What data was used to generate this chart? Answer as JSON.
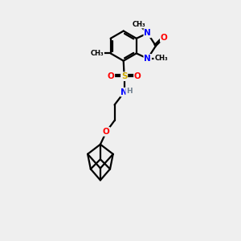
{
  "background_color": "#efefef",
  "bond_color": "#000000",
  "atom_colors": {
    "N": "#0000ff",
    "O": "#ff0000",
    "S": "#ccaa00",
    "H": "#708090",
    "C": "#000000"
  },
  "figsize": [
    3.0,
    3.0
  ],
  "dpi": 100,
  "xlim": [
    0,
    10
  ],
  "ylim": [
    -12,
    4
  ]
}
